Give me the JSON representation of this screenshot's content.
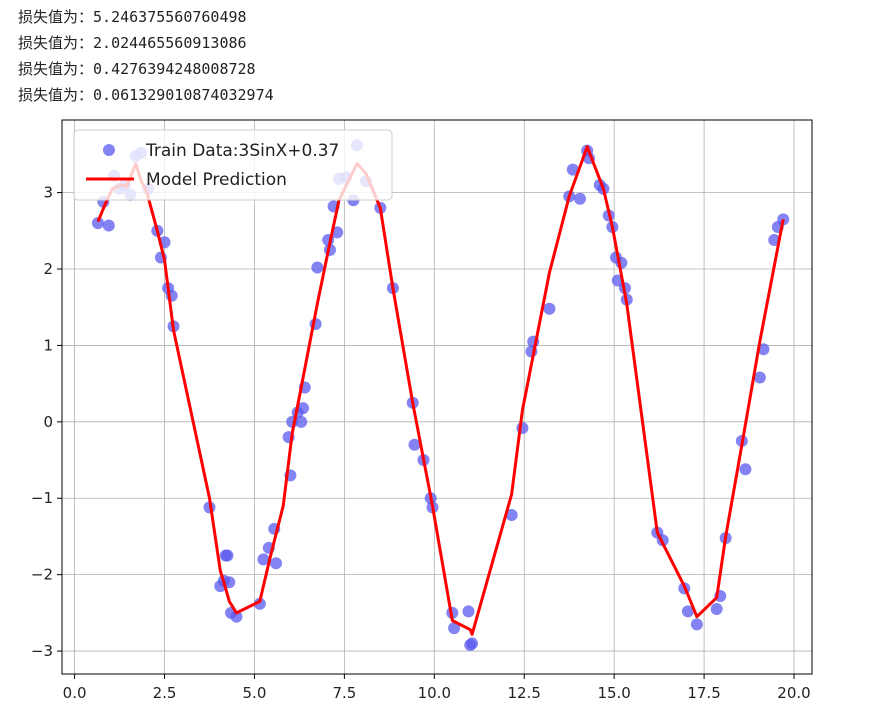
{
  "logs": [
    {
      "label": "损失值为：",
      "value": "5.246375560760498"
    },
    {
      "label": "损失值为：",
      "value": "2.024465560913086"
    },
    {
      "label": "损失值为：",
      "value": "0.4276394248008728"
    },
    {
      "label": "损失值为：",
      "value": "0.061329010874032974"
    }
  ],
  "chart_data": {
    "type": "scatter",
    "title": "",
    "xlabel": "",
    "ylabel": "",
    "xlim": [
      -0.35,
      20.5
    ],
    "ylim": [
      -3.3,
      3.95
    ],
    "xticks": [
      0.0,
      2.5,
      5.0,
      7.5,
      10.0,
      12.5,
      15.0,
      17.5,
      20.0
    ],
    "xtick_labels": [
      "0.0",
      "2.5",
      "5.0",
      "7.5",
      "10.0",
      "12.5",
      "15.0",
      "17.5",
      "20.0"
    ],
    "yticks": [
      -3,
      -2,
      -1,
      0,
      1,
      2,
      3
    ],
    "ytick_labels": [
      "−3",
      "−2",
      "−1",
      "0",
      "1",
      "2",
      "3"
    ],
    "grid": true,
    "legend_position": "top-left",
    "series": [
      {
        "name": "Train Data:3SinX+0.37",
        "kind": "scatter",
        "color": "#5a5af0",
        "x": [
          0.65,
          0.8,
          0.95,
          1.1,
          1.25,
          1.4,
          1.55,
          1.7,
          1.85,
          2.05,
          2.3,
          2.4,
          2.5,
          2.6,
          2.7,
          2.75,
          3.75,
          4.05,
          4.15,
          4.2,
          4.25,
          4.3,
          4.35,
          4.5,
          5.15,
          5.25,
          5.4,
          5.55,
          5.6,
          5.95,
          6.0,
          6.05,
          6.2,
          6.3,
          6.35,
          6.4,
          6.7,
          6.75,
          7.05,
          7.1,
          7.2,
          7.3,
          7.35,
          7.55,
          7.75,
          7.85,
          8.1,
          8.5,
          8.85,
          9.4,
          9.45,
          9.7,
          9.9,
          9.95,
          10.5,
          10.55,
          10.95,
          11.0,
          11.05,
          12.15,
          12.45,
          12.7,
          12.75,
          13.2,
          13.75,
          13.85,
          14.05,
          14.25,
          14.3,
          14.6,
          14.7,
          14.85,
          14.95,
          15.05,
          15.1,
          15.2,
          15.3,
          15.35,
          16.2,
          16.35,
          16.95,
          17.05,
          17.3,
          17.85,
          17.95,
          18.1,
          18.55,
          18.65,
          19.05,
          19.15,
          19.45,
          19.55,
          19.7
        ],
        "y": [
          2.6,
          2.88,
          2.57,
          3.22,
          3.05,
          3.1,
          2.97,
          3.48,
          3.52,
          3.05,
          2.5,
          2.15,
          2.35,
          1.75,
          1.65,
          1.25,
          -1.12,
          -2.15,
          -2.08,
          -1.75,
          -1.75,
          -2.1,
          -2.5,
          -2.55,
          -2.38,
          -1.8,
          -1.65,
          -1.4,
          -1.85,
          -0.2,
          -0.7,
          0.0,
          0.12,
          0.0,
          0.18,
          0.45,
          1.28,
          2.02,
          2.38,
          2.25,
          2.82,
          2.48,
          3.18,
          3.2,
          2.9,
          3.62,
          3.15,
          2.8,
          1.75,
          0.25,
          -0.3,
          -0.5,
          -1.0,
          -1.12,
          -2.5,
          -2.7,
          -2.48,
          -2.92,
          -2.9,
          -1.22,
          -0.08,
          0.92,
          1.05,
          1.48,
          2.95,
          3.3,
          2.92,
          3.55,
          3.45,
          3.1,
          3.05,
          2.7,
          2.55,
          2.15,
          1.85,
          2.08,
          1.75,
          1.6,
          -1.45,
          -1.55,
          -2.18,
          -2.48,
          -2.65,
          -2.45,
          -2.28,
          -1.52,
          -0.25,
          -0.62,
          0.58,
          0.95,
          2.38,
          2.55,
          2.65
        ]
      },
      {
        "name": "Model Prediction",
        "kind": "line",
        "color": "#ff0000",
        "x": [
          0.65,
          0.85,
          1.05,
          1.3,
          1.45,
          1.7,
          1.85,
          2.0,
          2.3,
          2.5,
          2.75,
          3.75,
          4.05,
          4.15,
          4.3,
          4.5,
          5.15,
          5.45,
          5.8,
          6.05,
          6.3,
          6.75,
          7.1,
          7.35,
          7.85,
          8.1,
          8.5,
          8.85,
          9.4,
          9.95,
          10.5,
          11.0,
          11.05,
          12.15,
          12.45,
          13.2,
          13.75,
          14.25,
          14.7,
          14.95,
          15.35,
          16.2,
          16.95,
          17.3,
          17.85,
          18.1,
          18.55,
          19.05,
          19.7
        ],
        "y": [
          2.62,
          2.85,
          3.05,
          3.1,
          3.08,
          3.38,
          3.15,
          3.02,
          2.5,
          2.12,
          1.2,
          -1.0,
          -1.95,
          -2.1,
          -2.35,
          -2.5,
          -2.35,
          -1.75,
          -1.1,
          -0.15,
          0.45,
          1.55,
          2.35,
          2.9,
          3.38,
          3.25,
          2.8,
          1.75,
          0.25,
          -1.1,
          -2.6,
          -2.72,
          -2.78,
          -0.95,
          0.15,
          1.95,
          2.95,
          3.6,
          3.05,
          2.55,
          1.55,
          -1.45,
          -2.15,
          -2.55,
          -2.3,
          -1.5,
          -0.3,
          1.05,
          2.65
        ]
      }
    ]
  }
}
